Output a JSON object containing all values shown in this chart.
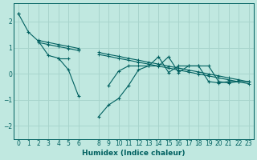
{
  "background_color": "#c0e8e0",
  "grid_color": "#a8d4cc",
  "line_color": "#006060",
  "xlabel": "Humidex (Indice chaleur)",
  "xlim": [
    -0.5,
    23.5
  ],
  "ylim": [
    -2.5,
    2.7
  ],
  "yticks": [
    -2,
    -1,
    0,
    1,
    2
  ],
  "xticks": [
    0,
    1,
    2,
    3,
    4,
    5,
    6,
    8,
    9,
    10,
    11,
    12,
    13,
    14,
    15,
    16,
    17,
    18,
    19,
    20,
    21,
    22,
    23
  ],
  "s1": [
    2.3,
    1.6,
    1.25,
    0.7,
    0.6,
    0.15,
    -0.85,
    null,
    -1.65,
    -1.2,
    -0.95,
    -0.45,
    0.15,
    0.3,
    0.3,
    0.65,
    0.05,
    0.3,
    0.3,
    0.3,
    -0.3,
    -0.35,
    -0.3,
    -0.3
  ],
  "s2": [
    2.3,
    null,
    1.25,
    null,
    0.6,
    0.6,
    null,
    null,
    null,
    -0.45,
    0.1,
    0.3,
    0.3,
    0.3,
    0.65,
    0.05,
    0.3,
    0.3,
    0.3,
    -0.3,
    -0.35,
    -0.3,
    -0.3,
    null
  ],
  "s3": [
    null,
    null,
    1.2,
    1.12,
    1.04,
    0.97,
    0.89,
    null,
    0.74,
    0.67,
    0.59,
    0.52,
    0.44,
    0.37,
    0.29,
    0.22,
    0.14,
    0.07,
    -0.01,
    -0.08,
    -0.16,
    -0.23,
    -0.31,
    -0.38
  ],
  "s4": [
    null,
    null,
    1.28,
    1.2,
    1.12,
    1.05,
    0.97,
    null,
    0.82,
    0.74,
    0.67,
    0.59,
    0.52,
    0.44,
    0.37,
    0.29,
    0.22,
    0.14,
    0.07,
    -0.01,
    -0.08,
    -0.16,
    -0.23,
    -0.31
  ]
}
